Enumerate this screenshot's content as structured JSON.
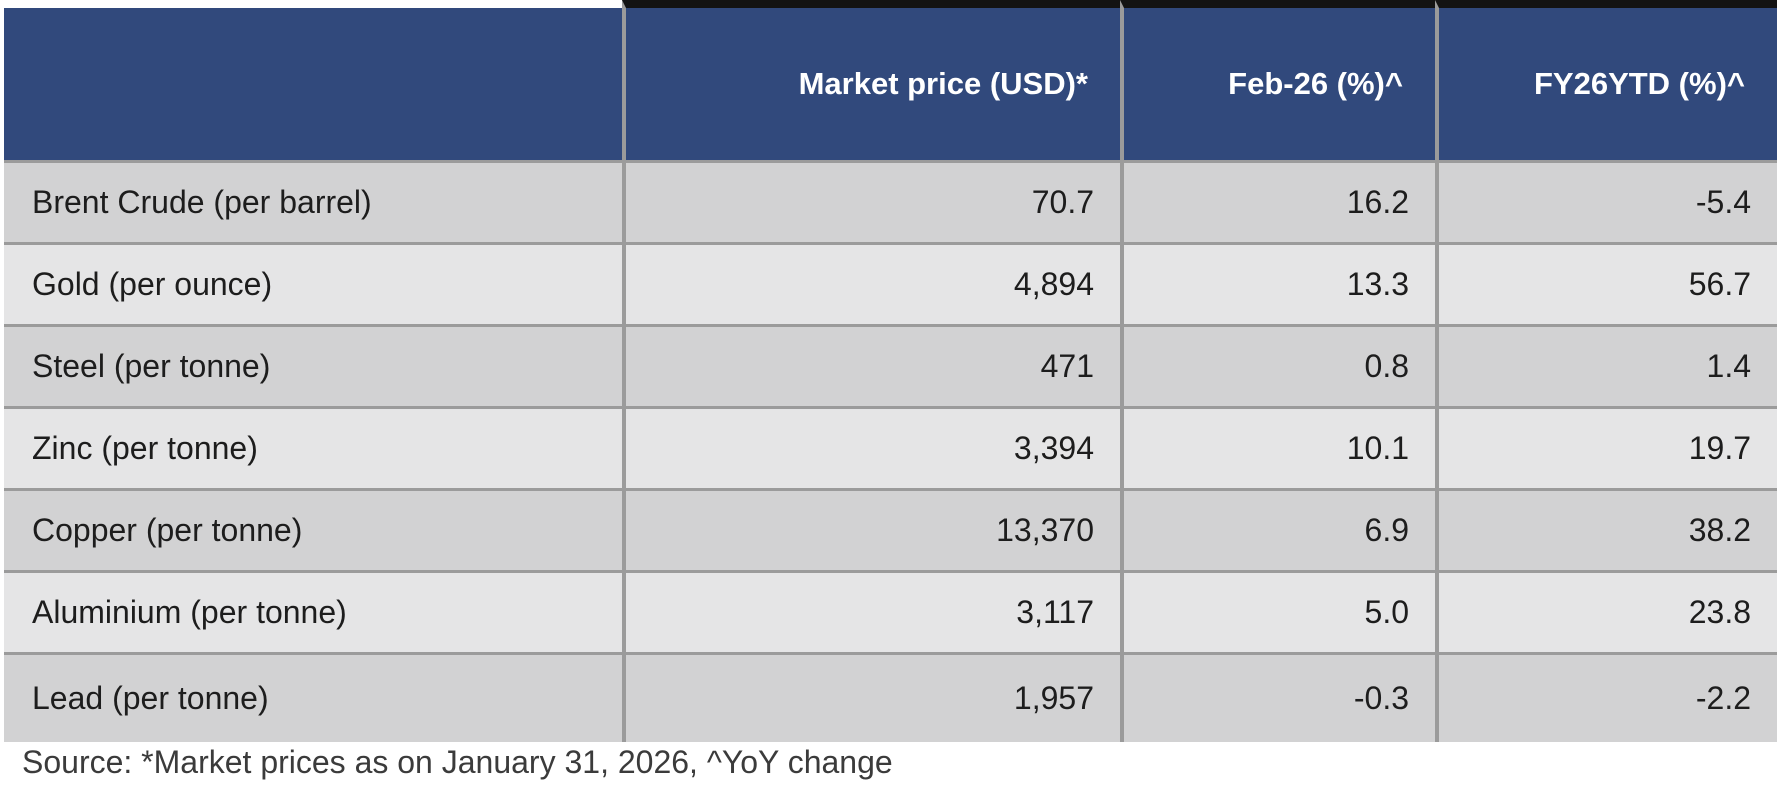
{
  "table": {
    "columns": [
      "",
      "Market price (USD)*",
      "Feb-26 (%)^",
      "FY26YTD (%)^"
    ],
    "rows": [
      {
        "label": "Brent Crude (per barrel)",
        "values": [
          "70.7",
          "16.2",
          "-5.4"
        ]
      },
      {
        "label": "Gold (per ounce)",
        "values": [
          "4,894",
          "13.3",
          "56.7"
        ]
      },
      {
        "label": "Steel (per tonne)",
        "values": [
          "471",
          "0.8",
          "1.4"
        ]
      },
      {
        "label": "Zinc (per tonne)",
        "values": [
          "3,394",
          "10.1",
          "19.7"
        ]
      },
      {
        "label": "Copper (per tonne)",
        "values": [
          "13,370",
          "6.9",
          "38.2"
        ]
      },
      {
        "label": "Aluminium (per tonne)",
        "values": [
          "3,117",
          "5.0",
          "23.8"
        ]
      },
      {
        "label": "Lead (per tonne)",
        "values": [
          "1,957",
          "-0.3",
          "-2.2"
        ]
      }
    ]
  },
  "footnote": "Source: *Market prices as on January 31, 2026, ^YoY change",
  "colors": {
    "header_bg": "#31497C",
    "header_text": "#ffffff",
    "row_dark": "#D2D2D3",
    "row_light": "#E5E5E6",
    "separator": "#9B9B9B",
    "top_border": "#131313",
    "body_text": "#1D1D1D",
    "footnote_text": "#3B3B3B"
  },
  "chart_data": {
    "type": "table",
    "title": "Commodity market prices and YoY change",
    "columns": [
      "",
      "Market price (USD)*",
      "Feb-26 (%)^",
      "FY26YTD (%)^"
    ],
    "rows": [
      [
        "Brent Crude (per barrel)",
        70.7,
        16.2,
        -5.4
      ],
      [
        "Gold (per ounce)",
        4894,
        13.3,
        56.7
      ],
      [
        "Steel (per tonne)",
        471,
        0.8,
        1.4
      ],
      [
        "Zinc (per tonne)",
        3394,
        10.1,
        19.7
      ],
      [
        "Copper (per tonne)",
        13370,
        6.9,
        38.2
      ],
      [
        "Aluminium (per tonne)",
        3117,
        5.0,
        23.8
      ],
      [
        "Lead (per tonne)",
        1957,
        -0.3,
        -2.2
      ]
    ],
    "footnote": "Source: *Market prices as on January 31, 2026, ^YoY change"
  }
}
